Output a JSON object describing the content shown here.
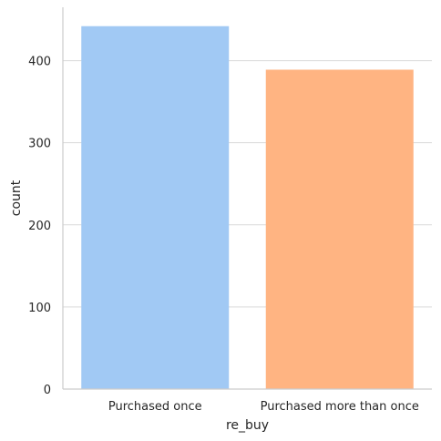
{
  "chart_data": {
    "type": "bar",
    "categories": [
      "Purchased once",
      "Purchased more than once"
    ],
    "values": [
      442,
      389
    ],
    "xlabel": "re_buy",
    "ylabel": "count",
    "ylim": [
      0,
      465
    ],
    "yticks": [
      0,
      100,
      200,
      300,
      400
    ],
    "grid": "horizontal",
    "colors": [
      "#a1c9f4",
      "#ffb482"
    ],
    "grid_color": "#d9d9d9",
    "axis_color": "#cccccc",
    "text_color": "#262626"
  }
}
